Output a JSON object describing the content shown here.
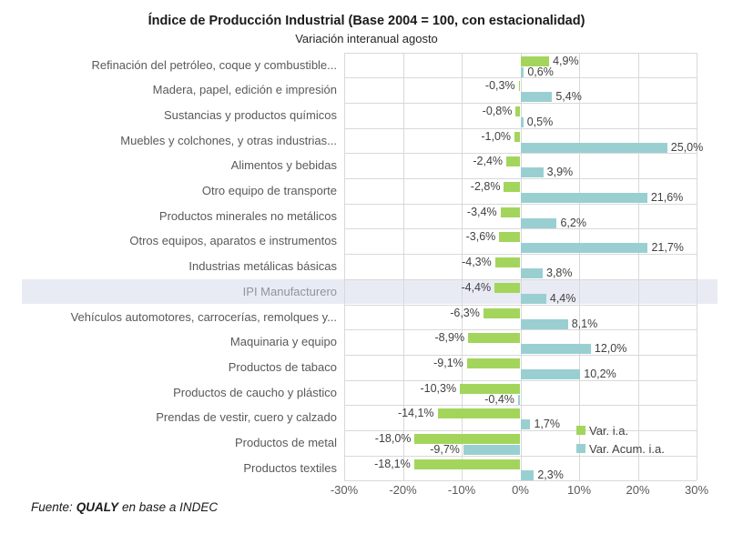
{
  "header": {
    "title": "Índice de Producción Industrial (Base 2004 = 100, con estacionalidad)",
    "subtitle": "Variación interanual agosto"
  },
  "footer": {
    "prefix": "Fuente:",
    "brand": "QUALY",
    "suffix": "en base a INDEC"
  },
  "colors": {
    "var_ia": "#a3d55c",
    "var_acum": "#9acfd2",
    "highlight_row_bg": "#e9ebf4",
    "gridline": "#d9d9d9",
    "bar_label_text": "#404040",
    "category_text": "#595959",
    "highlight_category_text": "#8e959e"
  },
  "chart_data": {
    "type": "bar",
    "orientation": "horizontal",
    "title": "Índice de Producción Industrial (Base 2004 = 100, con estacionalidad)",
    "subtitle": "Variación interanual agosto",
    "xlim": [
      -30,
      30
    ],
    "xticks": [
      "-30%",
      "-20%",
      "-10%",
      "0%",
      "10%",
      "20%",
      "30%"
    ],
    "grid": true,
    "legend_position": "inside-bottom-right",
    "highlight_category": "IPI Manufacturero",
    "categories": [
      "Refinación del petróleo, coque y combustible...",
      "Madera, papel, edición e impresión",
      "Sustancias y productos químicos",
      "Muebles y colchones, y otras industrias...",
      "Alimentos y bebidas",
      "Otro equipo de transporte",
      "Productos minerales no metálicos",
      "Otros equipos, aparatos e instrumentos",
      "Industrias metálicas básicas",
      "IPI Manufacturero",
      "Vehículos automotores, carrocerías, remolques y...",
      "Maquinaria y equipo",
      "Productos de tabaco",
      "Productos de caucho y plástico",
      "Prendas de vestir, cuero y calzado",
      "Productos de metal",
      "Productos textiles"
    ],
    "series": [
      {
        "name": "Var. i.a.",
        "color": "#a3d55c",
        "values": [
          4.9,
          -0.3,
          -0.8,
          -1.0,
          -2.4,
          -2.8,
          -3.4,
          -3.6,
          -4.3,
          -4.4,
          -6.3,
          -8.9,
          -9.1,
          -10.3,
          -14.1,
          -18.0,
          -18.1
        ],
        "labels": [
          "4,9%",
          "-0,3%",
          "-0,8%",
          "-1,0%",
          "-2,4%",
          "-2,8%",
          "-3,4%",
          "-3,6%",
          "-4,3%",
          "-4,4%",
          "-6,3%",
          "-8,9%",
          "-9,1%",
          "-10,3%",
          "-14,1%",
          "-18,0%",
          "-18,1%"
        ]
      },
      {
        "name": "Var. Acum. i.a.",
        "color": "#9acfd2",
        "values": [
          0.6,
          5.4,
          0.5,
          25.0,
          3.9,
          21.6,
          6.2,
          21.7,
          3.8,
          4.4,
          8.1,
          12.0,
          10.2,
          -0.4,
          1.7,
          -9.7,
          2.3
        ],
        "labels": [
          "0,6%",
          "5,4%",
          "0,5%",
          "25,0%",
          "3,9%",
          "21,6%",
          "6,2%",
          "21,7%",
          "3,8%",
          "4,4%",
          "8,1%",
          "12,0%",
          "10,2%",
          "-0,4%",
          "1,7%",
          "-9,7%",
          "2,3%"
        ]
      }
    ]
  }
}
